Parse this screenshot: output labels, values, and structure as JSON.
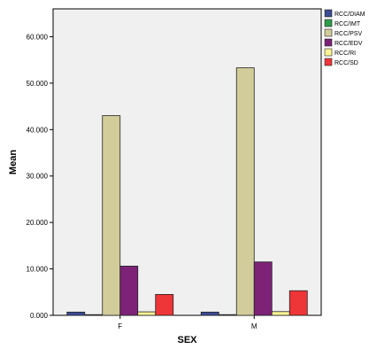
{
  "chart_data": {
    "type": "bar",
    "xlabel": "SEX",
    "ylabel": "Mean",
    "categories": [
      "F",
      "M"
    ],
    "ylim": [
      0,
      66000
    ],
    "yticks": [
      0,
      10000,
      20000,
      30000,
      40000,
      50000,
      60000
    ],
    "ytick_labels": [
      "0.000",
      "10.000",
      "20.000",
      "30.000",
      "40.000",
      "50.000",
      "60.000"
    ],
    "grid": false,
    "legend_position": "right",
    "series": [
      {
        "name": "RCC/DIAM",
        "color": "#3b4c96",
        "values": [
          700,
          700
        ]
      },
      {
        "name": "RCC/IMT",
        "color": "#2e9e4a",
        "values": [
          80,
          80
        ]
      },
      {
        "name": "RCC/PSV",
        "color": "#d2cc9a",
        "values": [
          43000,
          53300
        ]
      },
      {
        "name": "RCC/EDV",
        "color": "#7d2277",
        "values": [
          10600,
          11500
        ]
      },
      {
        "name": "RCC/RI",
        "color": "#fbf493",
        "values": [
          750,
          800
        ]
      },
      {
        "name": "RCC/SD",
        "color": "#ee3638",
        "values": [
          4500,
          5300
        ]
      }
    ]
  }
}
